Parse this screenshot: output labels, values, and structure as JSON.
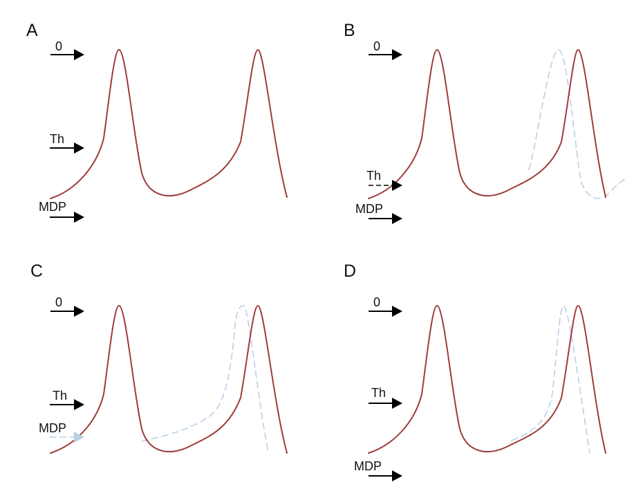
{
  "colors": {
    "trace": "#9e3a3a",
    "modified_trace": "#b9cfe6",
    "arrow": "#000000"
  },
  "labels": {
    "zero": "0",
    "threshold": "Th",
    "mdp": "MDP"
  },
  "panels": [
    {
      "letter": "A"
    },
    {
      "letter": "B"
    },
    {
      "letter": "C"
    },
    {
      "letter": "D"
    }
  ]
}
